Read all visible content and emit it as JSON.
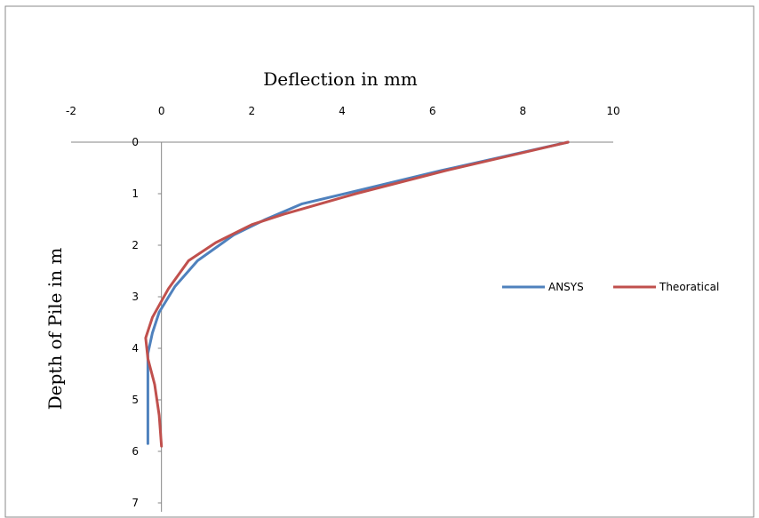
{
  "chart_data": {
    "type": "line",
    "xlabel": "Deflection in mm",
    "ylabel": "Depth of Pile in m",
    "xlim": [
      -2,
      10
    ],
    "ylim": [
      0,
      7
    ],
    "x_ticks": [
      "-2",
      "0",
      "2",
      "4",
      "6",
      "8",
      "10"
    ],
    "y_ticks": [
      "0",
      "1",
      "2",
      "3",
      "4",
      "5",
      "6",
      "7"
    ],
    "x_axis_position": "top",
    "y_axis_inverted": true,
    "legend_position": "right",
    "series": [
      {
        "name": "ANSYS",
        "color": "#4F81BD",
        "points": [
          [
            9.0,
            0.0
          ],
          [
            6.2,
            0.55
          ],
          [
            4.3,
            0.95
          ],
          [
            3.1,
            1.2
          ],
          [
            2.3,
            1.5
          ],
          [
            1.6,
            1.8
          ],
          [
            0.8,
            2.3
          ],
          [
            0.3,
            2.8
          ],
          [
            -0.05,
            3.3
          ],
          [
            -0.2,
            3.7
          ],
          [
            -0.3,
            4.1
          ],
          [
            -0.3,
            4.6
          ],
          [
            -0.3,
            5.2
          ],
          [
            -0.3,
            5.85
          ]
        ]
      },
      {
        "name": "Theoratical",
        "color": "#C0504D",
        "points": [
          [
            9.0,
            0.0
          ],
          [
            6.3,
            0.55
          ],
          [
            4.3,
            1.0
          ],
          [
            2.7,
            1.4
          ],
          [
            2.0,
            1.6
          ],
          [
            1.2,
            1.95
          ],
          [
            0.6,
            2.3
          ],
          [
            0.15,
            2.85
          ],
          [
            -0.2,
            3.4
          ],
          [
            -0.35,
            3.8
          ],
          [
            -0.3,
            4.2
          ],
          [
            -0.15,
            4.7
          ],
          [
            -0.05,
            5.3
          ],
          [
            0.0,
            5.9
          ]
        ]
      }
    ]
  }
}
